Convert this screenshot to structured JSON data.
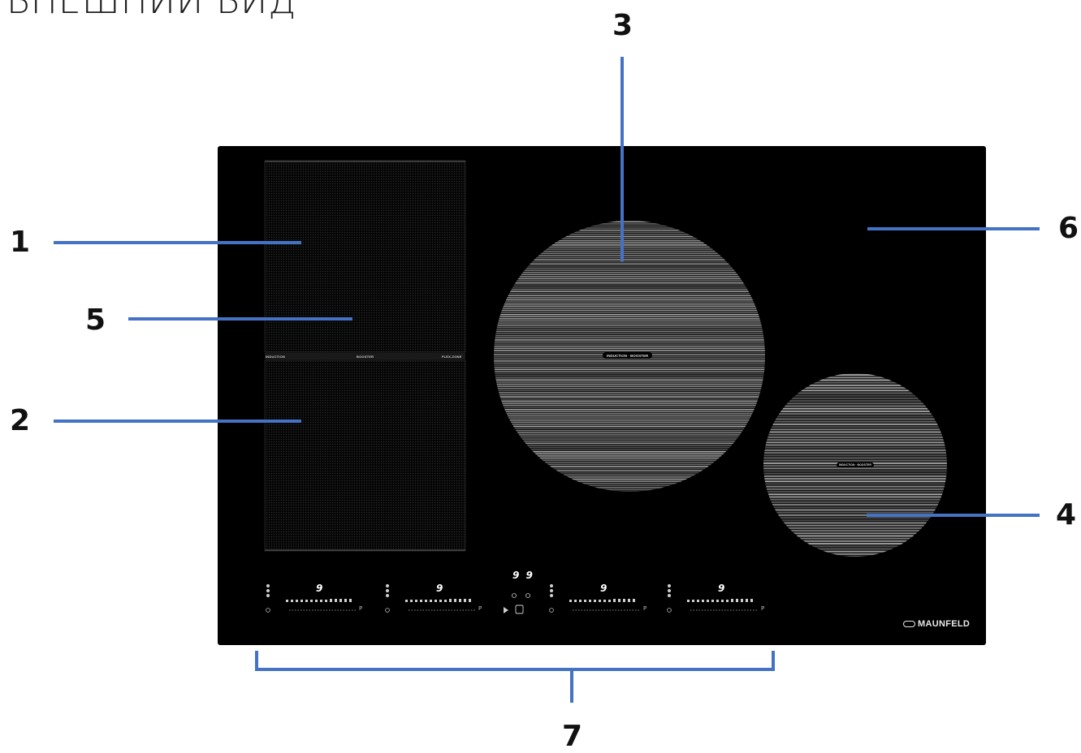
{
  "title": "ВНЕШНИЙ ВИД",
  "brand": "MAUNFELD",
  "colors": {
    "callout": "#4472c4",
    "glass": "#000000",
    "zone_stripe": "#8a8a8a",
    "background": "#ffffff"
  },
  "callouts": [
    {
      "num": "1"
    },
    {
      "num": "2"
    },
    {
      "num": "3"
    },
    {
      "num": "4"
    },
    {
      "num": "5"
    },
    {
      "num": "6"
    },
    {
      "num": "7"
    }
  ],
  "flex_zone": {
    "label_left": "INDUCTION",
    "label_center": "BOOSTER",
    "label_right": "FLEX-ZONE"
  },
  "large_zone": {
    "label": "INDUCTION · BOOSTER"
  },
  "small_zone": {
    "label": "INDUCTION · BOOSTER"
  },
  "controls": {
    "timer_display": "9 9",
    "zone_displays": [
      {
        "digit": "9",
        "p_label": "P"
      },
      {
        "digit": "9",
        "p_label": "P"
      },
      {
        "digit": "9",
        "p_label": "P"
      },
      {
        "digit": "9",
        "p_label": "P"
      }
    ]
  },
  "icons": [
    "flex-zone-texture",
    "power-icon",
    "lock-icon",
    "timer-icon",
    "brand-logo-icon"
  ]
}
